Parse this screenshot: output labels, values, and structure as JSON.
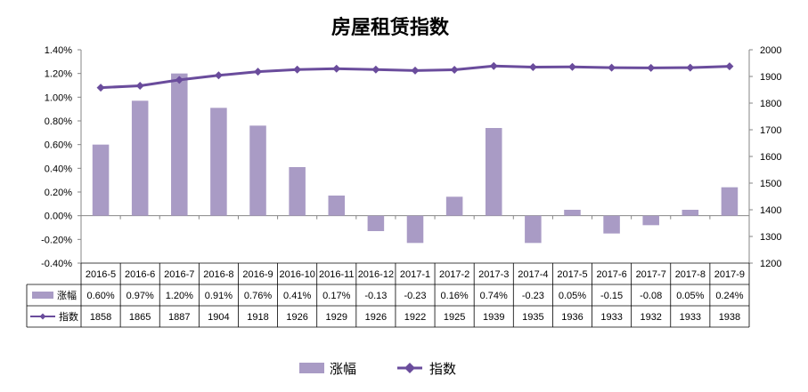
{
  "chart_data": {
    "type": "bar",
    "title": "房屋租赁指数",
    "categories": [
      "2016-5",
      "2016-6",
      "2016-7",
      "2016-8",
      "2016-9",
      "2016-10",
      "2016-11",
      "2016-12",
      "2017-1",
      "2017-2",
      "2017-3",
      "2017-4",
      "2017-5",
      "2017-6",
      "2017-7",
      "2017-8",
      "2017-9"
    ],
    "series": [
      {
        "name": "涨幅",
        "type": "bar",
        "axis": "left",
        "values": [
          0.6,
          0.97,
          1.2,
          0.91,
          0.76,
          0.41,
          0.17,
          -0.13,
          -0.23,
          0.16,
          0.74,
          -0.23,
          0.05,
          -0.15,
          -0.08,
          0.05,
          0.24
        ],
        "labels": [
          "0.60%",
          "0.97%",
          "1.20%",
          "0.91%",
          "0.76%",
          "0.41%",
          "0.17%",
          "-0.13",
          "-0.23",
          "0.16%",
          "0.74%",
          "-0.23",
          "0.05%",
          "-0.15",
          "-0.08",
          "0.05%",
          "0.24%"
        ],
        "color": "#a99bc5"
      },
      {
        "name": "指数",
        "type": "line",
        "axis": "right",
        "values": [
          1858,
          1865,
          1887,
          1904,
          1918,
          1926,
          1929,
          1926,
          1922,
          1925,
          1939,
          1935,
          1936,
          1933,
          1932,
          1933,
          1938
        ],
        "labels": [
          "1858",
          "1865",
          "1887",
          "1904",
          "1918",
          "1926",
          "1929",
          "1926",
          "1922",
          "1925",
          "1939",
          "1935",
          "1936",
          "1933",
          "1932",
          "1933",
          "1938"
        ],
        "color": "#6a4c9c"
      }
    ],
    "y_left": {
      "min": -0.4,
      "max": 1.4,
      "step": 0.2,
      "tick_labels": [
        "-0.40%",
        "-0.20%",
        "0.00%",
        "0.20%",
        "0.40%",
        "0.60%",
        "0.80%",
        "1.00%",
        "1.20%",
        "1.40%"
      ]
    },
    "y_right": {
      "min": 1200,
      "max": 2000,
      "step": 100,
      "tick_labels": [
        "1200",
        "1300",
        "1400",
        "1500",
        "1600",
        "1700",
        "1800",
        "1900",
        "2000"
      ]
    },
    "grid": false,
    "legend_position": "bottom",
    "data_table": true
  }
}
